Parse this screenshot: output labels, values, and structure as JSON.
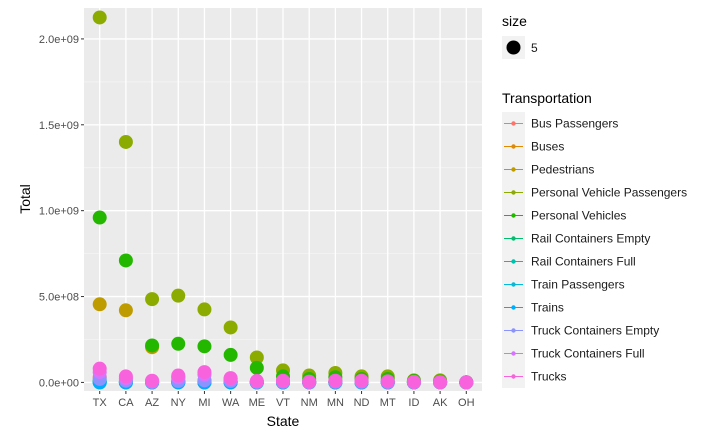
{
  "chart_data": {
    "type": "scatter",
    "title": "",
    "xlabel": "State",
    "ylabel": "Total",
    "categories": [
      "TX",
      "CA",
      "AZ",
      "NY",
      "MI",
      "WA",
      "ME",
      "VT",
      "NM",
      "MN",
      "ND",
      "MT",
      "ID",
      "AK",
      "OH"
    ],
    "ylim": [
      -50000000,
      2180000000
    ],
    "yticks": [
      0,
      500000000,
      1000000000,
      1500000000,
      2000000000
    ],
    "ytick_labels": [
      "0.0e+00",
      "5.0e+08",
      "1.0e+09",
      "1.5e+09",
      "2.0e+09"
    ],
    "grid": true,
    "legend": {
      "placement": "right",
      "size_title": "size",
      "size_value": "5",
      "color_title": "Transportation"
    },
    "series": [
      {
        "name": "Bus Passengers",
        "color": "#F8766D",
        "values": [
          30000000,
          20000000,
          3000000,
          15000000,
          5000000,
          8000000,
          1000000,
          2000000,
          1000000,
          1000000,
          1000000,
          1000000,
          500000,
          500000,
          100000
        ]
      },
      {
        "name": "Buses",
        "color": "#E18A00",
        "values": [
          1000000,
          500000,
          100000,
          500000,
          200000,
          300000,
          50000,
          50000,
          20000,
          30000,
          30000,
          30000,
          10000,
          20000,
          1000
        ]
      },
      {
        "name": "Pedestrians",
        "color": "#BE9C00",
        "values": [
          455000000,
          420000000,
          205000000,
          30000000,
          8000000,
          20000000,
          3000000,
          1000000,
          2000000,
          1000000,
          1000000,
          1000000,
          1000000,
          1000000,
          100000
        ]
      },
      {
        "name": "Personal Vehicle Passengers",
        "color": "#8CAB00",
        "values": [
          2125000000,
          1400000000,
          485000000,
          505000000,
          425000000,
          320000000,
          145000000,
          70000000,
          40000000,
          55000000,
          35000000,
          35000000,
          12000000,
          12000000,
          1000000
        ]
      },
      {
        "name": "Personal Vehicles",
        "color": "#24B700",
        "values": [
          960000000,
          710000000,
          215000000,
          225000000,
          210000000,
          160000000,
          85000000,
          35000000,
          20000000,
          30000000,
          20000000,
          20000000,
          8000000,
          5000000,
          500000
        ]
      },
      {
        "name": "Rail Containers Empty",
        "color": "#00BE70",
        "values": [
          5000000,
          1000000,
          1000000,
          2000000,
          3000000,
          2000000,
          500000,
          500000,
          0,
          500000,
          500000,
          500000,
          100000,
          0,
          0
        ]
      },
      {
        "name": "Rail Containers Full",
        "color": "#00C1AB",
        "values": [
          10000000,
          2000000,
          2000000,
          3000000,
          5000000,
          4000000,
          1000000,
          1000000,
          0,
          1000000,
          1000000,
          1000000,
          200000,
          0,
          0
        ]
      },
      {
        "name": "Train Passengers",
        "color": "#00BBDA",
        "values": [
          100000,
          300000,
          0,
          500000,
          100000,
          300000,
          10000,
          10000,
          0,
          10000,
          10000,
          5000,
          1000,
          1000,
          0
        ]
      },
      {
        "name": "Trains",
        "color": "#00ACFC",
        "values": [
          50000,
          10000,
          10000,
          20000,
          20000,
          20000,
          5000,
          5000,
          0,
          5000,
          5000,
          5000,
          1000,
          1000,
          0
        ]
      },
      {
        "name": "Truck Containers Empty",
        "color": "#8B93FF",
        "values": [
          20000000,
          10000000,
          2000000,
          8000000,
          12000000,
          8000000,
          3000000,
          3000000,
          1000000,
          3000000,
          3000000,
          2000000,
          1000000,
          500000,
          10000
        ]
      },
      {
        "name": "Truck Containers Full",
        "color": "#D575FE",
        "values": [
          60000000,
          25000000,
          8000000,
          30000000,
          45000000,
          20000000,
          5000000,
          8000000,
          3000000,
          8000000,
          8000000,
          5000000,
          2000000,
          500000,
          100000
        ]
      },
      {
        "name": "Trucks",
        "color": "#F962DD",
        "values": [
          80000000,
          35000000,
          10000000,
          40000000,
          60000000,
          25000000,
          8000000,
          10000000,
          4000000,
          10000000,
          10000000,
          6000000,
          3000000,
          1000000,
          200000
        ]
      }
    ]
  }
}
